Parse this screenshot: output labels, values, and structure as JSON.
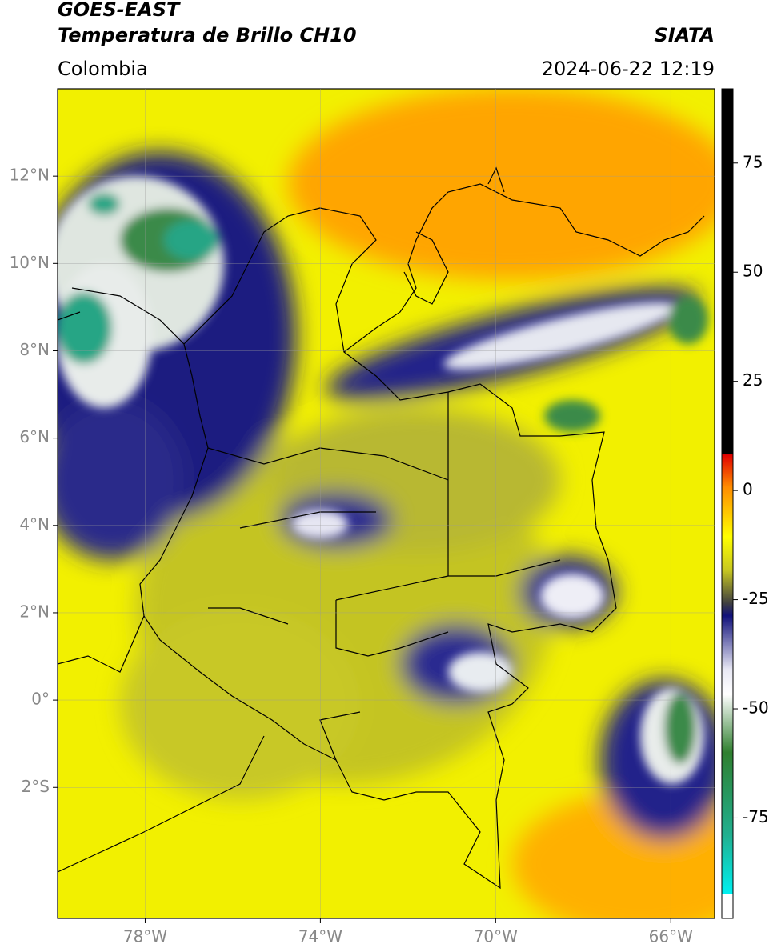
{
  "header": {
    "title": "GOES-EAST",
    "subtitle": "Temperatura de Brillo CH10",
    "source": "SIATA",
    "region": "Colombia",
    "datetime": "2024-06-22 12:19"
  },
  "map": {
    "xlim": [
      -80,
      -65
    ],
    "ylim": [
      -5,
      14
    ],
    "xticks": [
      {
        "value": -78,
        "label": "78°W"
      },
      {
        "value": -74,
        "label": "74°W"
      },
      {
        "value": -70,
        "label": "70°W"
      },
      {
        "value": -66,
        "label": "66°W"
      }
    ],
    "yticks": [
      {
        "value": 12,
        "label": "12°N"
      },
      {
        "value": 10,
        "label": "10°N"
      },
      {
        "value": 8,
        "label": "8°N"
      },
      {
        "value": 6,
        "label": "6°N"
      },
      {
        "value": 4,
        "label": "4°N"
      },
      {
        "value": 2,
        "label": "2°N"
      },
      {
        "value": 0,
        "label": "0°"
      },
      {
        "value": -2,
        "label": "2°S"
      }
    ],
    "grid": true
  },
  "colorbar": {
    "lim": [
      -98,
      92
    ],
    "ticks": [
      75,
      50,
      25,
      0,
      -25,
      -50,
      -75
    ]
  }
}
